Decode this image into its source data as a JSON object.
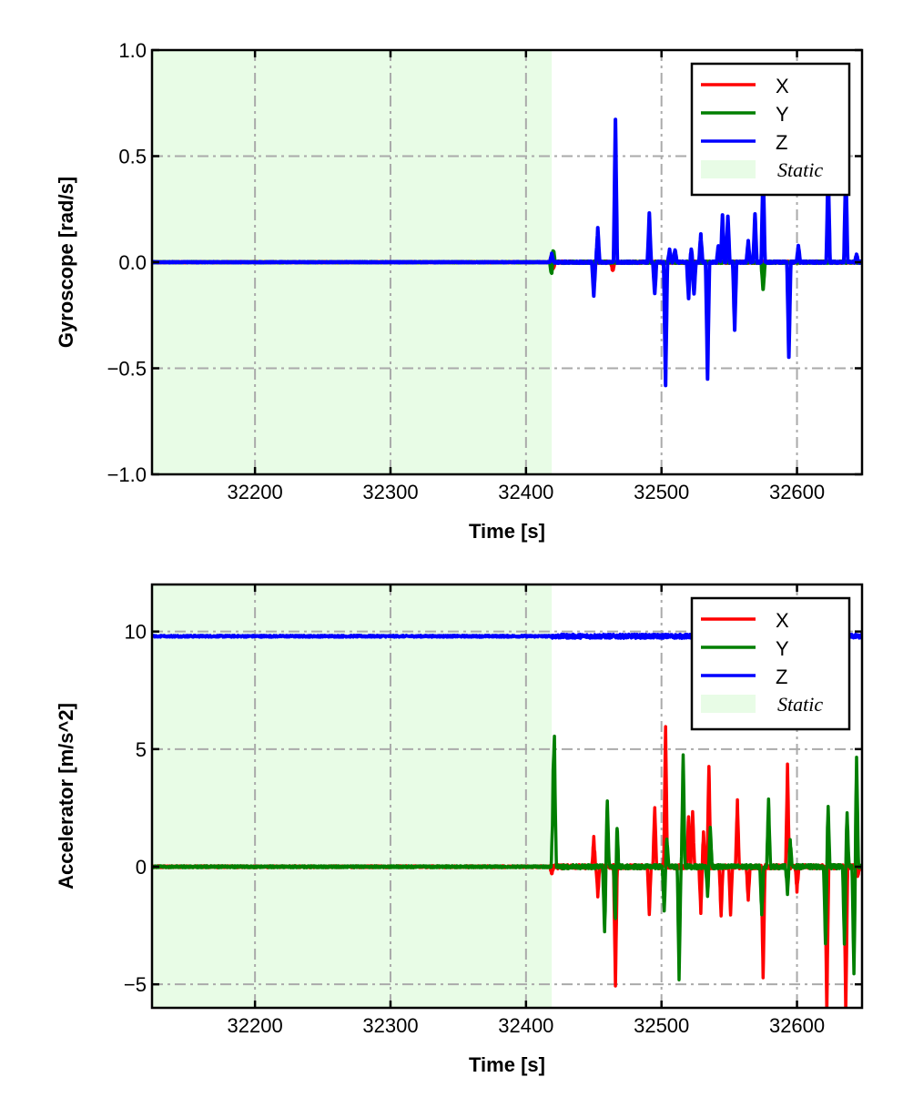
{
  "chart_data": [
    {
      "type": "line",
      "title": "",
      "xlabel": "Time [s]",
      "ylabel": "Gyroscope [rad/s]",
      "xlim": [
        32124,
        32648
      ],
      "ylim": [
        -1.0,
        1.0
      ],
      "xticks": [
        32200,
        32300,
        32400,
        32500,
        32600
      ],
      "xtick_labels": [
        "32200",
        "32300",
        "32400",
        "32500",
        "32600"
      ],
      "yticks": [
        1.0,
        0.5,
        0.0,
        -0.5,
        -1.0
      ],
      "ytick_labels": [
        "1.0",
        "0.5",
        "0.0",
        "−0.5",
        "−1.0"
      ],
      "grid": true,
      "legend_position": "top-right",
      "static_region": [
        32124,
        32419
      ],
      "series": [
        {
          "name": "X",
          "color": "#ff0000",
          "baseline": 0.0,
          "noise": 0.004,
          "spikes": [
            [
              32419,
              0.04
            ],
            [
              32420,
              -0.04
            ],
            [
              32464,
              -0.04
            ]
          ]
        },
        {
          "name": "Y",
          "color": "#007f00",
          "baseline": 0.0,
          "noise": 0.004,
          "spikes": [
            [
              32419,
              -0.07
            ],
            [
              32420,
              0.07
            ],
            [
              32575,
              -0.13
            ]
          ]
        },
        {
          "name": "Z",
          "color": "#0000ff",
          "baseline": 0.0,
          "noise": 0.004,
          "spikes": [
            [
              32419,
              0.04
            ],
            [
              32450,
              -0.16
            ],
            [
              32453,
              0.16
            ],
            [
              32466,
              0.67
            ],
            [
              32491,
              0.23
            ],
            [
              32495,
              -0.15
            ],
            [
              32503,
              -0.58
            ],
            [
              32506,
              0.06
            ],
            [
              32510,
              0.06
            ],
            [
              32520,
              -0.17
            ],
            [
              32522,
              0.06
            ],
            [
              32524,
              -0.15
            ],
            [
              32529,
              0.13
            ],
            [
              32534,
              -0.55
            ],
            [
              32542,
              0.08
            ],
            [
              32545,
              0.22
            ],
            [
              32549,
              0.22
            ],
            [
              32554,
              -0.32
            ],
            [
              32564,
              0.1
            ],
            [
              32569,
              0.23
            ],
            [
              32575,
              0.45
            ],
            [
              32594,
              -0.45
            ],
            [
              32601,
              0.08
            ],
            [
              32623,
              0.45
            ],
            [
              32636,
              0.45
            ],
            [
              32644,
              0.04
            ]
          ]
        }
      ],
      "legend": [
        "X",
        "Y",
        "Z",
        "Static"
      ]
    },
    {
      "type": "line",
      "title": "",
      "xlabel": "Time [s]",
      "ylabel": "Accelerator [m/s^2]",
      "xlim": [
        32124,
        32648
      ],
      "ylim": [
        -6.0,
        12.0
      ],
      "xticks": [
        32200,
        32300,
        32400,
        32500,
        32600
      ],
      "xtick_labels": [
        "32200",
        "32300",
        "32400",
        "32500",
        "32600"
      ],
      "yticks": [
        10,
        5,
        0,
        -5
      ],
      "ytick_labels": [
        "10",
        "5",
        "0",
        "−5"
      ],
      "grid": true,
      "legend_position": "top-right",
      "static_region": [
        32124,
        32419
      ],
      "series": [
        {
          "name": "X",
          "color": "#ff0000",
          "baseline": 0.0,
          "noise": 0.08,
          "spikes": [
            [
              32419,
              -0.3
            ],
            [
              32450,
              1.2
            ],
            [
              32453,
              -1.2
            ],
            [
              32466,
              -5.0
            ],
            [
              32491,
              -2.0
            ],
            [
              32495,
              2.5
            ],
            [
              32503,
              6.0
            ],
            [
              32520,
              2.2
            ],
            [
              32523,
              2.3
            ],
            [
              32529,
              -1.9
            ],
            [
              32531,
              1.4
            ],
            [
              32535,
              4.3
            ],
            [
              32544,
              -2.1
            ],
            [
              32551,
              -2.0
            ],
            [
              32556,
              2.8
            ],
            [
              32564,
              -1.4
            ],
            [
              32575,
              -4.8
            ],
            [
              32593,
              4.3
            ],
            [
              32600,
              -1.0
            ],
            [
              32622,
              -6.2
            ],
            [
              32636,
              -6.2
            ],
            [
              32645,
              -0.4
            ]
          ]
        },
        {
          "name": "Y",
          "color": "#007f00",
          "baseline": 0.0,
          "noise": 0.08,
          "spikes": [
            [
              32420,
              2.8
            ],
            [
              32421,
              4.8
            ],
            [
              32458,
              -2.8
            ],
            [
              32460,
              2.8
            ],
            [
              32466,
              -2.8
            ],
            [
              32467,
              2.3
            ],
            [
              32502,
              -1.9
            ],
            [
              32504,
              1.2
            ],
            [
              32513,
              -4.8
            ],
            [
              32516,
              4.8
            ],
            [
              32534,
              -1.2
            ],
            [
              32536,
              1.7
            ],
            [
              32574,
              -2.1
            ],
            [
              32579,
              2.9
            ],
            [
              32593,
              -1.1
            ],
            [
              32595,
              1.1
            ],
            [
              32621,
              -3.3
            ],
            [
              32623,
              2.5
            ],
            [
              32635,
              -3.3
            ],
            [
              32637,
              2.3
            ],
            [
              32642,
              -4.6
            ],
            [
              32644,
              4.6
            ]
          ]
        },
        {
          "name": "Z",
          "color": "#0000ff",
          "baseline": 9.8,
          "noise": 0.08,
          "spikes": []
        }
      ],
      "legend": [
        "X",
        "Y",
        "Z",
        "Static"
      ]
    }
  ]
}
